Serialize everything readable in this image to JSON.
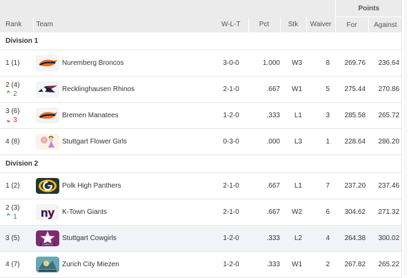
{
  "headers": {
    "rank": "Rank",
    "team": "Team",
    "wlt": "W-L-T",
    "pct": "Pct",
    "stk": "Stk",
    "waiver": "Waiver",
    "points": "Points",
    "for": "For",
    "against": "Against"
  },
  "divisions": [
    {
      "name": "Division 1",
      "teams": [
        {
          "rank": "1 (1)",
          "move": "",
          "move_dir": "",
          "logo": "broncos-icon",
          "name": "Nuremberg Broncos",
          "wlt": "3-0-0",
          "pct": "1.000",
          "stk": "W3",
          "waiver": "8",
          "pf": "269.76",
          "pa": "236.64"
        },
        {
          "rank": "2 (4)",
          "move": "2",
          "move_dir": "up",
          "logo": "patriots-icon",
          "name": "Recklinghausen Rhinos",
          "wlt": "2-1-0",
          "pct": ".667",
          "stk": "W1",
          "waiver": "5",
          "pf": "275.44",
          "pa": "270.86"
        },
        {
          "rank": "3 (6)",
          "move": "3",
          "move_dir": "down",
          "logo": "broncos-icon",
          "name": "Bremen Manatees",
          "wlt": "1-2-0",
          "pct": ".333",
          "stk": "L1",
          "waiver": "3",
          "pf": "285.58",
          "pa": "265.72"
        },
        {
          "rank": "4 (8)",
          "move": "",
          "move_dir": "",
          "logo": "flower-icon",
          "name": "Stuttgart Flower Girls",
          "wlt": "0-3-0",
          "pct": ".000",
          "stk": "L3",
          "waiver": "1",
          "pf": "228.64",
          "pa": "286.20"
        }
      ]
    },
    {
      "name": "Division 2",
      "teams": [
        {
          "rank": "1 (2)",
          "move": "",
          "move_dir": "",
          "logo": "packers-icon",
          "name": "Polk High Panthers",
          "wlt": "2-1-0",
          "pct": ".667",
          "stk": "L1",
          "waiver": "7",
          "pf": "237.20",
          "pa": "237.46"
        },
        {
          "rank": "2 (3)",
          "move": "1",
          "move_dir": "up",
          "logo": "giants-icon",
          "name": "K-Town Giants",
          "wlt": "2-1-0",
          "pct": ".667",
          "stk": "W2",
          "waiver": "6",
          "pf": "304.62",
          "pa": "271.32"
        },
        {
          "rank": "3 (5)",
          "move": "",
          "move_dir": "",
          "logo": "cowboys-icon",
          "name": "Stuttgart Cowgirls",
          "wlt": "1-2-0",
          "pct": ".333",
          "stk": "L2",
          "waiver": "4",
          "pf": "264.38",
          "pa": "300.02",
          "highlight": true
        },
        {
          "rank": "4 (7)",
          "move": "",
          "move_dir": "",
          "logo": "zurich-icon",
          "name": "Zurich City Miezen",
          "wlt": "1-2-0",
          "pct": ".333",
          "stk": "W1",
          "waiver": "2",
          "pf": "267.82",
          "pa": "265.22"
        }
      ]
    }
  ],
  "colors": {
    "header_bg": "#ebebeb",
    "up": "#2e8b2e",
    "down": "#cc2222",
    "highlight_row": "#f0f4f8"
  }
}
